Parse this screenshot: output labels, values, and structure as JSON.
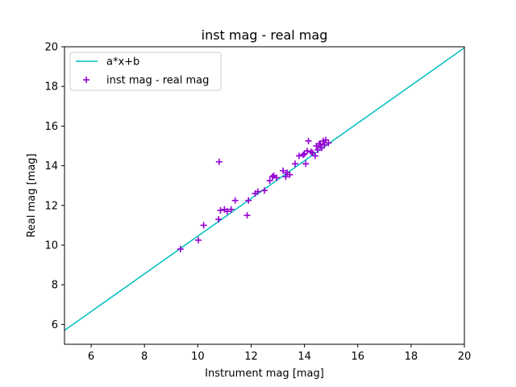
{
  "chart_data": {
    "type": "scatter",
    "title": "inst mag - real mag",
    "xlabel": "Instrument mag [mag]",
    "ylabel": "Real mag [mag]",
    "xlim": [
      5,
      20
    ],
    "ylim": [
      5,
      20
    ],
    "xticks": [
      6,
      8,
      10,
      12,
      14,
      16,
      18,
      20
    ],
    "yticks": [
      6,
      8,
      10,
      12,
      14,
      16,
      18,
      20
    ],
    "grid": false,
    "legend_position": "top-left",
    "series": [
      {
        "name": "a*x+b",
        "kind": "line",
        "color": "#00bfbf",
        "x": [
          5,
          20
        ],
        "y": [
          5.7,
          19.95
        ]
      },
      {
        "name": "inst mag - real mag",
        "kind": "scatter",
        "marker": "+",
        "color": "#9400d3",
        "x": [
          9.35,
          10.02,
          10.22,
          10.78,
          10.8,
          10.85,
          11.0,
          11.1,
          11.25,
          11.4,
          11.85,
          11.9,
          12.15,
          12.25,
          12.5,
          12.7,
          12.8,
          12.85,
          12.95,
          13.2,
          13.3,
          13.35,
          13.45,
          13.65,
          13.8,
          13.95,
          14.0,
          14.05,
          14.1,
          14.15,
          14.25,
          14.3,
          14.4,
          14.45,
          14.5,
          14.55,
          14.6,
          14.65,
          14.7,
          14.75,
          14.8,
          14.9
        ],
        "y": [
          9.8,
          10.25,
          11.0,
          11.3,
          14.2,
          11.75,
          11.8,
          11.7,
          11.8,
          12.25,
          11.5,
          12.25,
          12.6,
          12.7,
          12.75,
          13.25,
          13.45,
          13.5,
          13.4,
          13.75,
          13.45,
          13.65,
          13.55,
          14.1,
          14.5,
          14.55,
          14.6,
          14.1,
          14.75,
          15.25,
          14.7,
          14.65,
          14.5,
          15.0,
          14.8,
          15.1,
          15.1,
          14.9,
          15.25,
          15.05,
          15.3,
          15.15
        ]
      }
    ]
  }
}
